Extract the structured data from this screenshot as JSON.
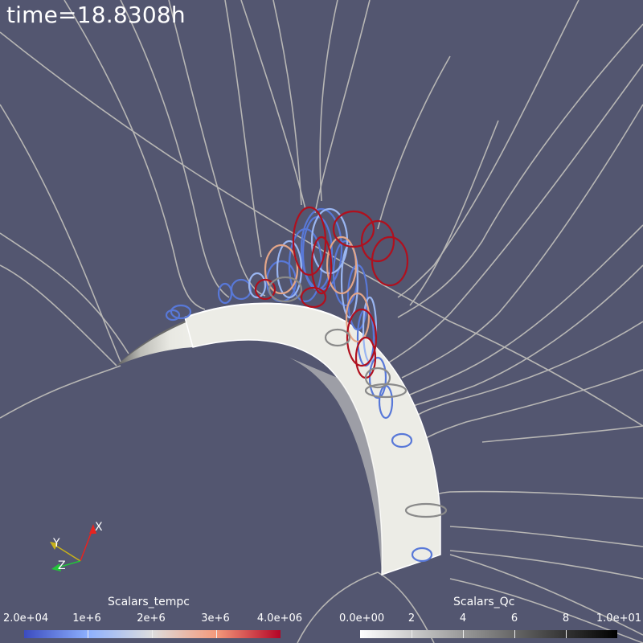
{
  "view": {
    "background": "#535670",
    "time_label": "time=18.8308h"
  },
  "colorbars": [
    {
      "title": "Scalars_tempc",
      "tick_labels": [
        "2.0e+04",
        "1e+6",
        "2e+6",
        "3e+6",
        "4.0e+06"
      ],
      "colormap": [
        "#3b4cc0",
        "#8db0fe",
        "#dddddd",
        "#f49a7b",
        "#b40426"
      ]
    },
    {
      "title": "Scalars_Qc",
      "tick_labels": [
        "0.0e+00",
        "2",
        "4",
        "6",
        "8",
        "1.0e+01"
      ],
      "colormap": [
        "#ffffff",
        "#000000"
      ]
    }
  ],
  "axes_triad": {
    "labels": [
      "X",
      "Y",
      "Z"
    ],
    "colors": [
      "#e8231f",
      "#c8b21a",
      "#23c43a"
    ]
  }
}
